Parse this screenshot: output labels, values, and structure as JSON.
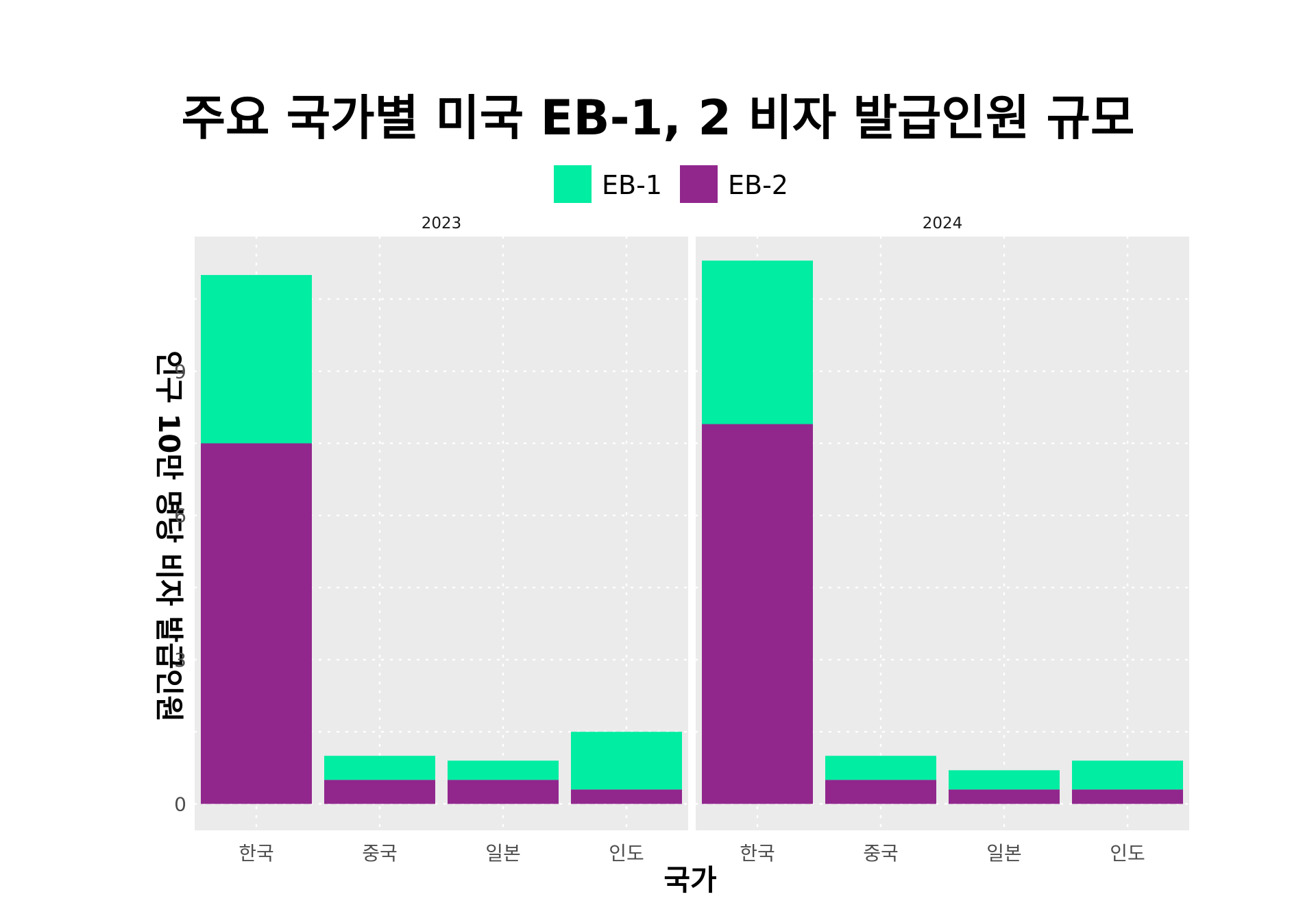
{
  "chart_data": {
    "type": "bar",
    "stacked": true,
    "title": "주요 국가별 미국 EB-1, 2 비자 발급인원 규모",
    "xlabel": "국가",
    "ylabel": "인구 10만 명당 비자 발급인원",
    "legend_position": "top",
    "grid": true,
    "ylim": [
      -0.55,
      11.8
    ],
    "y_ticks": [
      "0",
      "3",
      "6",
      "9"
    ],
    "categories": [
      "한국",
      "중국",
      "일본",
      "인도"
    ],
    "legend": [
      {
        "name": "EB-1",
        "color": "#00EDA2"
      },
      {
        "name": "EB-2",
        "color": "#91278D"
      }
    ],
    "panels": [
      {
        "label": "2023",
        "series": [
          {
            "name": "EB-2",
            "values": [
              7.5,
              0.5,
              0.5,
              0.3
            ]
          },
          {
            "name": "EB-1",
            "values": [
              3.5,
              0.5,
              0.4,
              1.2
            ]
          }
        ]
      },
      {
        "label": "2024",
        "series": [
          {
            "name": "EB-2",
            "values": [
              7.9,
              0.5,
              0.3,
              0.3
            ]
          },
          {
            "name": "EB-1",
            "values": [
              3.4,
              0.5,
              0.4,
              0.6
            ]
          }
        ]
      }
    ],
    "colors": {
      "panel_bg": "#EBEBEB",
      "grid": "#FFFFFF",
      "EB-1": "#00EDA2",
      "EB-2": "#91278D"
    }
  }
}
